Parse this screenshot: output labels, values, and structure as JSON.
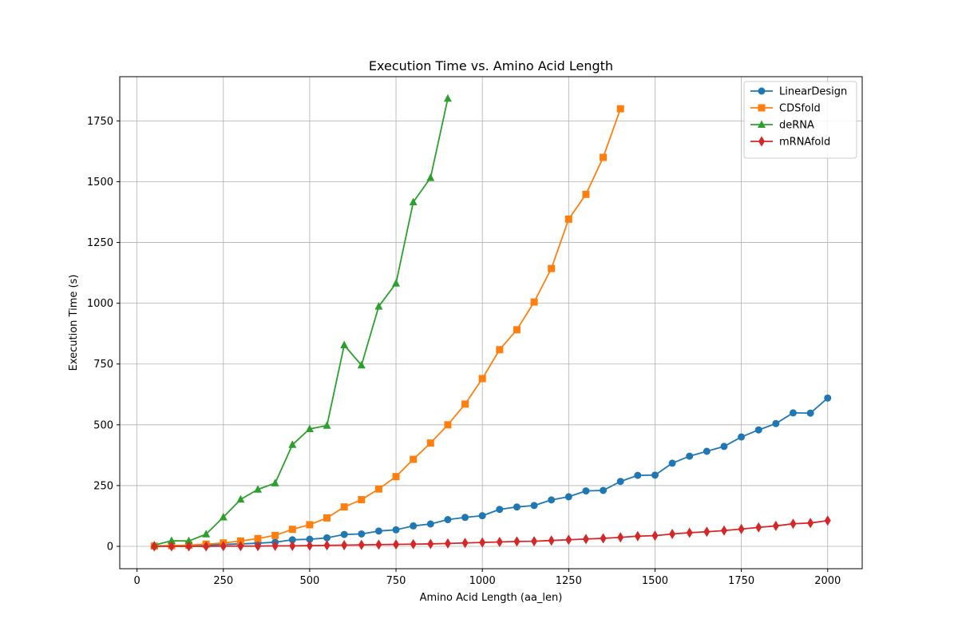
{
  "chart_data": {
    "type": "line",
    "title": "Execution Time vs. Amino Acid Length",
    "xlabel": "Amino Acid Length (aa_len)",
    "ylabel": "Execution Time (s)",
    "xlim": [
      -50,
      2100
    ],
    "ylim": [
      -92,
      1932
    ],
    "xticks": [
      0,
      250,
      500,
      750,
      1000,
      1250,
      1500,
      1750,
      2000
    ],
    "yticks": [
      0,
      250,
      500,
      750,
      1000,
      1250,
      1500,
      1750
    ],
    "grid": true,
    "legend_position": "top-right",
    "series": [
      {
        "name": "LinearDesign",
        "color": "#1f77b4",
        "marker": "circle",
        "x": [
          50,
          100,
          150,
          200,
          250,
          300,
          350,
          400,
          450,
          500,
          550,
          600,
          650,
          700,
          750,
          800,
          850,
          900,
          950,
          1000,
          1050,
          1100,
          1150,
          1200,
          1250,
          1300,
          1350,
          1400,
          1450,
          1500,
          1550,
          1600,
          1650,
          1700,
          1750,
          1800,
          1850,
          1900,
          1950,
          2000
        ],
        "y": [
          2,
          3,
          3,
          5,
          8,
          10,
          13,
          17,
          27,
          29,
          35,
          49,
          51,
          63,
          68,
          84,
          92,
          110,
          119,
          126,
          152,
          162,
          168,
          191,
          204,
          228,
          230,
          267,
          292,
          293,
          342,
          371,
          391,
          411,
          450,
          479,
          505,
          549,
          548,
          610
        ]
      },
      {
        "name": "CDSfold",
        "color": "#ff7f0e",
        "marker": "square",
        "x": [
          50,
          100,
          150,
          200,
          250,
          300,
          350,
          400,
          450,
          500,
          550,
          600,
          650,
          700,
          750,
          800,
          850,
          900,
          950,
          1000,
          1050,
          1100,
          1150,
          1200,
          1250,
          1300,
          1350,
          1400
        ],
        "y": [
          1,
          3,
          5,
          9,
          14,
          22,
          32,
          45,
          70,
          89,
          117,
          162,
          192,
          236,
          287,
          358,
          425,
          500,
          585,
          690,
          809,
          891,
          1005,
          1143,
          1346,
          1448,
          1600,
          1800
        ]
      },
      {
        "name": "deRNA",
        "color": "#2ca02c",
        "marker": "triangle",
        "x": [
          50,
          100,
          150,
          200,
          250,
          300,
          350,
          400,
          450,
          500,
          550,
          600,
          650,
          700,
          750,
          800,
          850,
          900
        ],
        "y": [
          5,
          23,
          22,
          50,
          120,
          193,
          234,
          260,
          418,
          483,
          497,
          828,
          745,
          987,
          1082,
          1416,
          1516,
          1842
        ]
      },
      {
        "name": "mRNAfold",
        "color": "#d62728",
        "marker": "diamond",
        "x": [
          50,
          100,
          150,
          200,
          250,
          300,
          350,
          400,
          450,
          500,
          550,
          600,
          650,
          700,
          750,
          800,
          850,
          900,
          950,
          1000,
          1050,
          1100,
          1150,
          1200,
          1250,
          1300,
          1350,
          1400,
          1450,
          1500,
          1550,
          1600,
          1650,
          1700,
          1750,
          1800,
          1850,
          1900,
          1950,
          2000
        ],
        "y": [
          0,
          0,
          0,
          0,
          1,
          1,
          1,
          2,
          2,
          3,
          4,
          5,
          6,
          7,
          8,
          9,
          10,
          12,
          14,
          16,
          18,
          20,
          21,
          24,
          27,
          30,
          33,
          37,
          42,
          44,
          51,
          56,
          60,
          65,
          71,
          78,
          84,
          93,
          96,
          106
        ]
      }
    ]
  }
}
